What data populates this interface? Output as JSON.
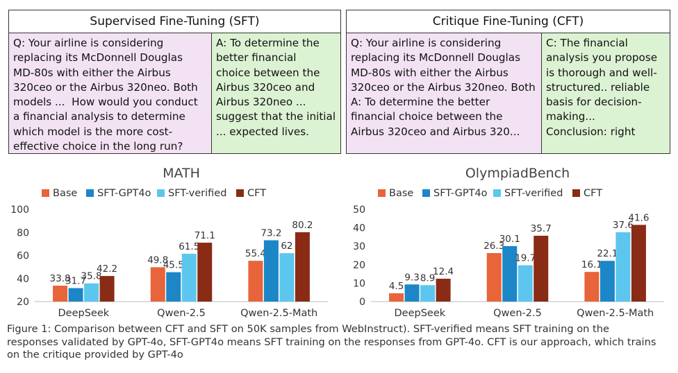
{
  "sft_panel": {
    "title": "Supervised Fine-Tuning (SFT)",
    "question_lines": [
      "Q: Your airline is considering",
      "replacing its McDonnell Douglas",
      "MD-80s with either the Airbus",
      "320ceo or the Airbus 320neo. Both",
      "models ...  How would you conduct",
      "a financial analysis to determine",
      "which model is the more cost-",
      "effective choice in the long run?"
    ],
    "answer_lines": [
      "A: To determine the",
      "better financial",
      "choice between the",
      "Airbus 320ceo and",
      "Airbus 320neo ...",
      "suggest that the initial",
      "... expected lives."
    ]
  },
  "cft_panel": {
    "title": "Critique Fine-Tuning (CFT)",
    "question_lines": [
      "Q: Your airline is considering",
      "replacing its McDonnell Douglas",
      "MD-80s with either the Airbus",
      "320ceo or the Airbus 320neo. Both",
      "",
      "A: To determine the better",
      "financial choice between the",
      "Airbus 320ceo and Airbus 320..."
    ],
    "critique_lines": [
      "C: The financial",
      "analysis you propose",
      "is thorough and well-",
      "structured.. reliable",
      "basis for decision-",
      "making...",
      "",
      "Conclusion: right"
    ]
  },
  "colors": {
    "Base": "#e8643a",
    "SFT-GPT4o": "#1d86c6",
    "SFT-verified": "#5cc6ef",
    "CFT": "#8a2b16"
  },
  "chart_data": [
    {
      "type": "bar",
      "title": "MATH",
      "categories": [
        "DeepSeek",
        "Qwen-2.5",
        "Qwen-2.5-Math"
      ],
      "series": [
        {
          "name": "Base",
          "values": [
            33.8,
            49.8,
            55.4
          ]
        },
        {
          "name": "SFT-GPT4o",
          "values": [
            31.7,
            45.5,
            73.2
          ]
        },
        {
          "name": "SFT-verified",
          "values": [
            35.8,
            61.5,
            62
          ]
        },
        {
          "name": "CFT",
          "values": [
            42.2,
            71.1,
            80.2
          ]
        }
      ],
      "ylim": [
        20,
        100
      ],
      "yticks": [
        20,
        40,
        60,
        80,
        100
      ],
      "xlabel": "",
      "ylabel": "",
      "legend": "top"
    },
    {
      "type": "bar",
      "title": "OlympiadBench",
      "categories": [
        "DeepSeek",
        "Qwen-2.5",
        "Qwen-2.5-Math"
      ],
      "series": [
        {
          "name": "Base",
          "values": [
            4.5,
            26.3,
            16.1
          ]
        },
        {
          "name": "SFT-GPT4o",
          "values": [
            9.3,
            30.1,
            22.1
          ]
        },
        {
          "name": "SFT-verified",
          "values": [
            8.9,
            19.7,
            37.6
          ]
        },
        {
          "name": "CFT",
          "values": [
            12.4,
            35.7,
            41.6
          ]
        }
      ],
      "ylim": [
        0,
        50
      ],
      "yticks": [
        0,
        10,
        20,
        30,
        40,
        50
      ],
      "xlabel": "",
      "ylabel": "",
      "legend": "top"
    }
  ],
  "caption_lines": [
    "Figure 1: Comparison between CFT and SFT on 50K samples from WebInstruct). SFT-verified means SFT training on the",
    "responses validated by GPT-4o, SFT-GPT4o means SFT training on the responses from GPT-4o. CFT is our approach, which trains",
    "on the critique provided by GPT-4o"
  ]
}
